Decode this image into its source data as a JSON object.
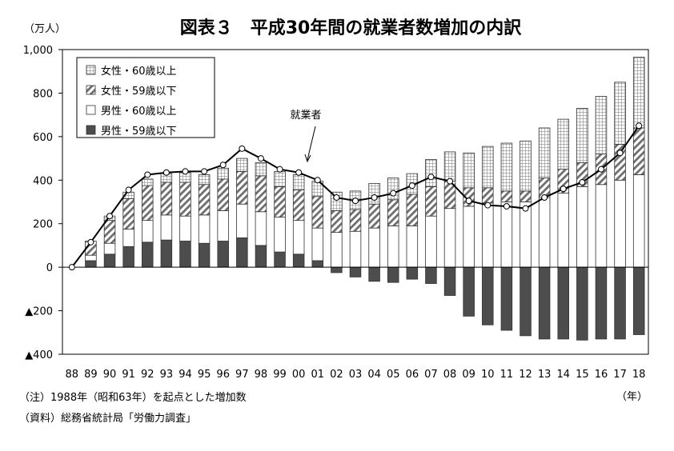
{
  "chart_data": {
    "type": "bar",
    "title": "図表３　平成30年間の就業者数増加の内訳",
    "ylabel": "（万人）",
    "xunit": "（年）",
    "ylim": [
      -400,
      1000
    ],
    "yticks": [
      1000,
      800,
      600,
      400,
      200,
      0,
      -200,
      -400
    ],
    "ytick_labels": [
      "1,000",
      "800",
      "600",
      "400",
      "200",
      "0",
      "▲200",
      "▲400"
    ],
    "categories": [
      "88",
      "89",
      "90",
      "91",
      "92",
      "93",
      "94",
      "95",
      "96",
      "97",
      "98",
      "99",
      "00",
      "01",
      "02",
      "03",
      "04",
      "05",
      "06",
      "07",
      "08",
      "09",
      "10",
      "11",
      "12",
      "13",
      "14",
      "15",
      "16",
      "17",
      "18"
    ],
    "legend_position": "top-left",
    "grid": false,
    "series": [
      {
        "name": "男性・59歳以下",
        "kind": "bar",
        "fill": "solid-dark",
        "values": [
          0,
          30,
          60,
          95,
          115,
          125,
          120,
          110,
          120,
          135,
          100,
          70,
          60,
          30,
          -25,
          -45,
          -65,
          -70,
          -55,
          -75,
          -130,
          -225,
          -265,
          -290,
          -315,
          -330,
          -330,
          -335,
          -330,
          -330,
          -310
        ]
      },
      {
        "name": "男性・60歳以上",
        "kind": "bar",
        "fill": "white",
        "values": [
          0,
          25,
          50,
          80,
          100,
          115,
          115,
          130,
          140,
          155,
          155,
          160,
          155,
          150,
          160,
          165,
          180,
          190,
          190,
          235,
          270,
          280,
          295,
          300,
          300,
          320,
          340,
          370,
          380,
          400,
          425
        ]
      },
      {
        "name": "女性・59歳以下",
        "kind": "bar",
        "fill": "hatched",
        "values": [
          0,
          65,
          105,
          140,
          160,
          150,
          155,
          140,
          145,
          150,
          165,
          140,
          140,
          145,
          100,
          100,
          110,
          120,
          145,
          135,
          125,
          85,
          70,
          50,
          50,
          90,
          110,
          110,
          140,
          165,
          215
        ]
      },
      {
        "name": "女性・60歳以上",
        "kind": "bar",
        "fill": "grid",
        "values": [
          0,
          0,
          20,
          30,
          30,
          40,
          45,
          45,
          50,
          60,
          60,
          70,
          70,
          70,
          85,
          85,
          95,
          100,
          95,
          125,
          135,
          160,
          190,
          220,
          230,
          230,
          230,
          250,
          265,
          285,
          325
        ]
      },
      {
        "name": "就業者",
        "kind": "line",
        "values": [
          0,
          115,
          235,
          355,
          425,
          435,
          440,
          440,
          470,
          545,
          500,
          450,
          435,
          400,
          320,
          305,
          320,
          340,
          375,
          415,
          395,
          305,
          285,
          280,
          270,
          320,
          360,
          390,
          450,
          525,
          650
        ]
      }
    ],
    "annotation": "就業者",
    "notes": [
      "（注）1988年（昭和63年）を起点とした増加数",
      "（資料）総務省統計局「労働力調査」"
    ]
  },
  "colors": {
    "dark_bar": "#4d4d4d",
    "line": "#000000",
    "hatch": "#7f7f7f",
    "grid_fill": "#bfbfbf"
  }
}
